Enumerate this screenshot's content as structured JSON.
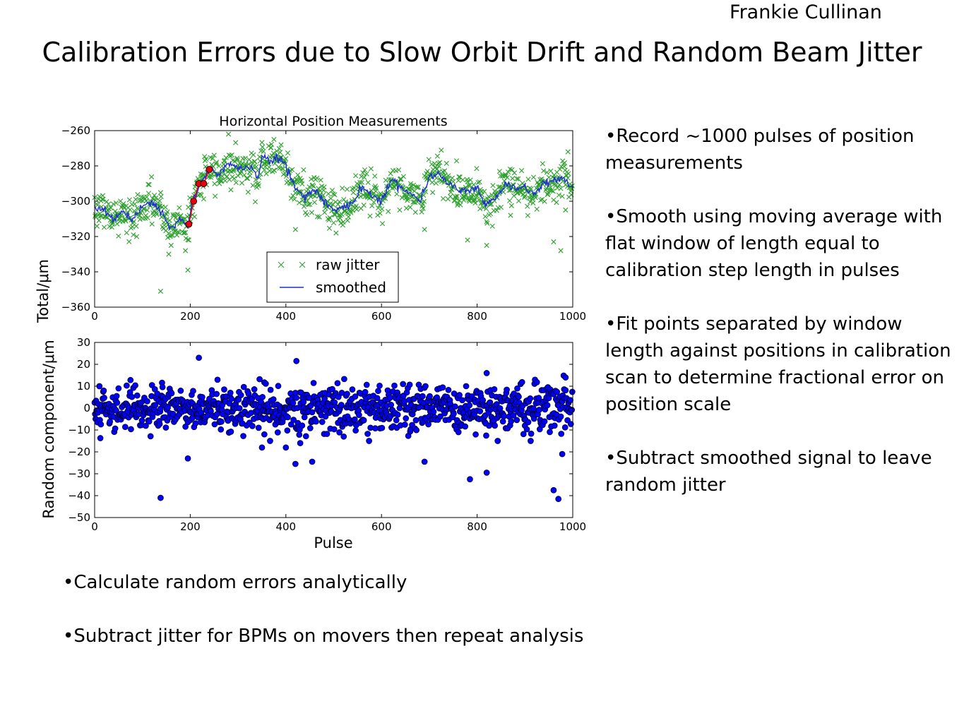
{
  "slide": {
    "author": "Frankie Cullinan",
    "title": "Calibration Errors due to Slow Orbit Drift and Random Beam Jitter",
    "bullets_right": [
      "Record ~1000 pulses of position measurements",
      "Smooth using moving average with flat window of length equal to calibration step length in pulses",
      "Fit points separated by window length against positions in calibration scan to determine fractional error on position scale",
      "Subtract smoothed signal to leave random jitter"
    ],
    "bullets_bottom": [
      "Calculate random errors analytically",
      "Subtract jitter for BPMs on movers then repeat analysis"
    ]
  },
  "colors": {
    "raw_jitter": "#2ca02c",
    "smoothed": "#1f2bd6",
    "fit_points": "#e8000b",
    "random_points": "#0000ff"
  },
  "chart_data": [
    {
      "type": "scatter",
      "title": "Horizontal Position Measurements",
      "ylabel": "Total/μm",
      "xlim": [
        0,
        1000
      ],
      "ylim": [
        -360,
        -260
      ],
      "xticks": [
        0,
        200,
        400,
        600,
        800,
        1000
      ],
      "yticks": [
        -260,
        -280,
        -300,
        -320,
        -340,
        -360
      ],
      "legend": {
        "placement": "lower-center",
        "entries": [
          "raw jitter",
          "smoothed"
        ]
      },
      "smoothed": {
        "name": "smoothed",
        "points": [
          [
            0,
            -303
          ],
          [
            20,
            -305
          ],
          [
            40,
            -310
          ],
          [
            60,
            -306
          ],
          [
            80,
            -312
          ],
          [
            100,
            -302
          ],
          [
            120,
            -300
          ],
          [
            140,
            -307
          ],
          [
            160,
            -316
          ],
          [
            180,
            -310
          ],
          [
            195,
            -315
          ],
          [
            205,
            -300
          ],
          [
            220,
            -290
          ],
          [
            240,
            -282
          ],
          [
            260,
            -285
          ],
          [
            280,
            -278
          ],
          [
            300,
            -282
          ],
          [
            330,
            -280
          ],
          [
            340,
            -288
          ],
          [
            350,
            -275
          ],
          [
            370,
            -277
          ],
          [
            390,
            -276
          ],
          [
            400,
            -280
          ],
          [
            420,
            -292
          ],
          [
            440,
            -298
          ],
          [
            460,
            -293
          ],
          [
            480,
            -300
          ],
          [
            500,
            -305
          ],
          [
            520,
            -304
          ],
          [
            540,
            -300
          ],
          [
            560,
            -292
          ],
          [
            580,
            -296
          ],
          [
            600,
            -300
          ],
          [
            620,
            -288
          ],
          [
            640,
            -292
          ],
          [
            660,
            -295
          ],
          [
            680,
            -300
          ],
          [
            700,
            -286
          ],
          [
            720,
            -284
          ],
          [
            740,
            -290
          ],
          [
            760,
            -293
          ],
          [
            780,
            -294
          ],
          [
            800,
            -292
          ],
          [
            820,
            -303
          ],
          [
            840,
            -298
          ],
          [
            860,
            -290
          ],
          [
            880,
            -294
          ],
          [
            900,
            -292
          ],
          [
            920,
            -296
          ],
          [
            940,
            -290
          ],
          [
            960,
            -288
          ],
          [
            980,
            -287
          ],
          [
            1000,
            -292
          ]
        ]
      },
      "fit_points": {
        "x": [
          197,
          207,
          218,
          228,
          240
        ],
        "y": [
          -313,
          -300,
          -290,
          -290,
          -282
        ]
      },
      "raw_jitter_outliers": [
        [
          138,
          -351
        ],
        [
          195,
          -339
        ],
        [
          155,
          -330
        ],
        [
          160,
          -325
        ],
        [
          190,
          -328
        ],
        [
          420,
          -316
        ],
        [
          505,
          -318
        ],
        [
          690,
          -316
        ],
        [
          780,
          -322
        ],
        [
          820,
          -325
        ],
        [
          870,
          -308
        ],
        [
          960,
          -323
        ],
        [
          975,
          -328
        ],
        [
          985,
          -305
        ],
        [
          990,
          -272
        ],
        [
          375,
          -265
        ],
        [
          390,
          -268
        ]
      ],
      "raw_jitter_note": "~1000 raw jitter samples scattered about the smoothed curve"
    },
    {
      "type": "scatter",
      "ylabel": "Random component/μm",
      "xlabel": "Pulse",
      "xlim": [
        0,
        1000
      ],
      "ylim": [
        -50,
        30
      ],
      "xticks": [
        0,
        200,
        400,
        600,
        800,
        1000
      ],
      "yticks": [
        30,
        20,
        10,
        0,
        -10,
        -20,
        -30,
        -40,
        -50
      ],
      "outliers": [
        [
          138,
          -41
        ],
        [
          195,
          -23
        ],
        [
          218,
          23
        ],
        [
          422,
          21.5
        ],
        [
          420,
          -25.5
        ],
        [
          455,
          -24.5
        ],
        [
          690,
          -24.5
        ],
        [
          785,
          -32.5
        ],
        [
          820,
          -29.5
        ],
        [
          960,
          -37.5
        ],
        [
          970,
          -41.5
        ],
        [
          978,
          -21
        ],
        [
          350,
          -18
        ],
        [
          400,
          -18
        ],
        [
          355,
          -12
        ],
        [
          430,
          -16
        ],
        [
          820,
          16
        ],
        [
          985,
          14
        ]
      ],
      "random_component_note": "~1000 random component samples roughly within ±15 μm of zero"
    }
  ]
}
